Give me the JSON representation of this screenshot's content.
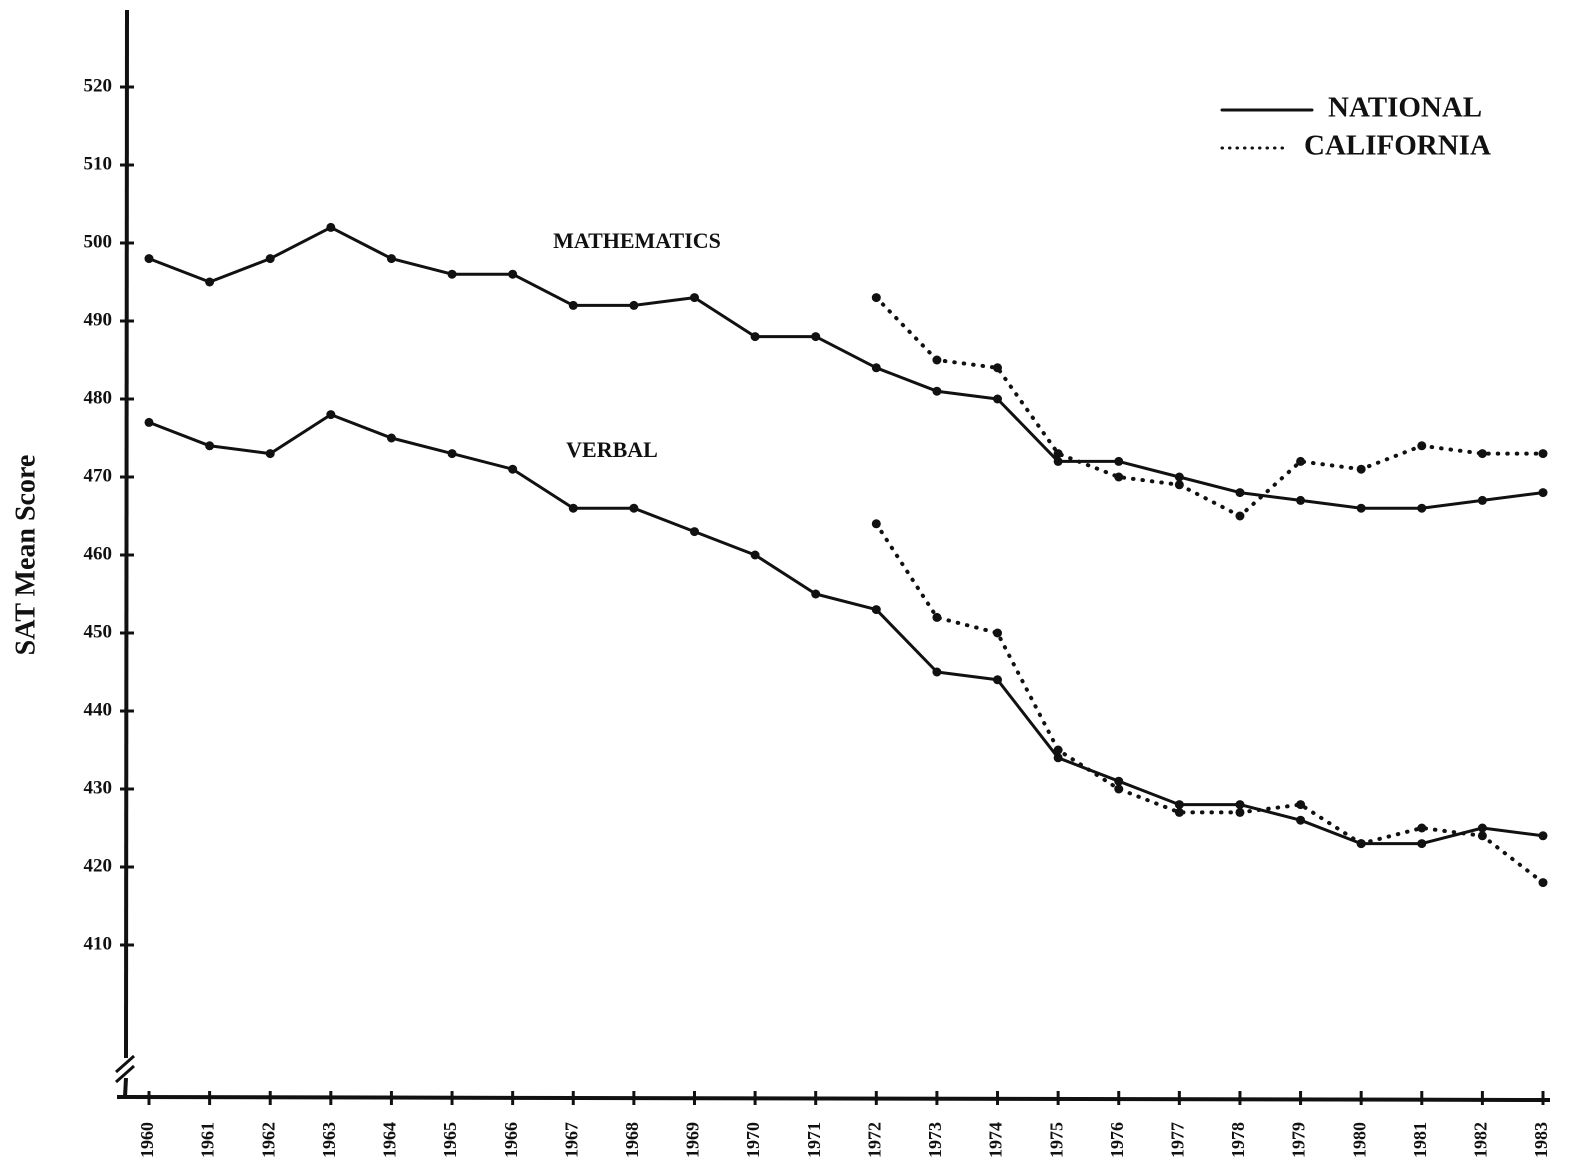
{
  "chart_data": {
    "type": "line",
    "y_label": "SAT Mean Score",
    "annotations": [
      "MATHEMATICS",
      "VERBAL"
    ],
    "categories": [
      "1960",
      "1961",
      "1962",
      "1963",
      "1964",
      "1965",
      "1966",
      "1967",
      "1968",
      "1969",
      "1970",
      "1971",
      "1972",
      "1973",
      "1974",
      "1975",
      "1976",
      "1977",
      "1978",
      "1979",
      "1980",
      "1981",
      "1982",
      "1983"
    ],
    "series": [
      {
        "name": "NATIONAL",
        "style": "solid",
        "color": "#111111",
        "values": [
          498,
          495,
          498,
          502,
          498,
          496,
          496,
          492,
          492,
          493,
          488,
          488,
          484,
          481,
          480,
          472,
          472,
          470,
          468,
          467,
          466,
          466,
          467,
          468
        ]
      },
      {
        "name": "CALIFORNIA",
        "style": "dotted",
        "color": "#111111",
        "values": [
          null,
          null,
          null,
          null,
          null,
          null,
          null,
          null,
          null,
          null,
          null,
          null,
          493,
          485,
          484,
          473,
          470,
          469,
          465,
          472,
          471,
          474,
          473,
          473
        ]
      },
      {
        "name": "NATIONAL",
        "style": "solid",
        "color": "#111111",
        "values": [
          477,
          474,
          473,
          478,
          475,
          473,
          471,
          466,
          466,
          463,
          460,
          455,
          453,
          445,
          444,
          434,
          431,
          428,
          428,
          426,
          423,
          423,
          425,
          424
        ]
      },
      {
        "name": "CALIFORNIA",
        "style": "dotted",
        "color": "#111111",
        "values": [
          null,
          null,
          null,
          null,
          null,
          null,
          null,
          null,
          null,
          null,
          null,
          null,
          464,
          452,
          450,
          435,
          430,
          427,
          427,
          428,
          423,
          425,
          424,
          418
        ]
      }
    ],
    "ylim": [
      391,
      530
    ],
    "yticks": [
      410,
      420,
      430,
      440,
      450,
      460,
      470,
      480,
      490,
      500,
      510,
      520
    ],
    "legend": "top-right"
  }
}
